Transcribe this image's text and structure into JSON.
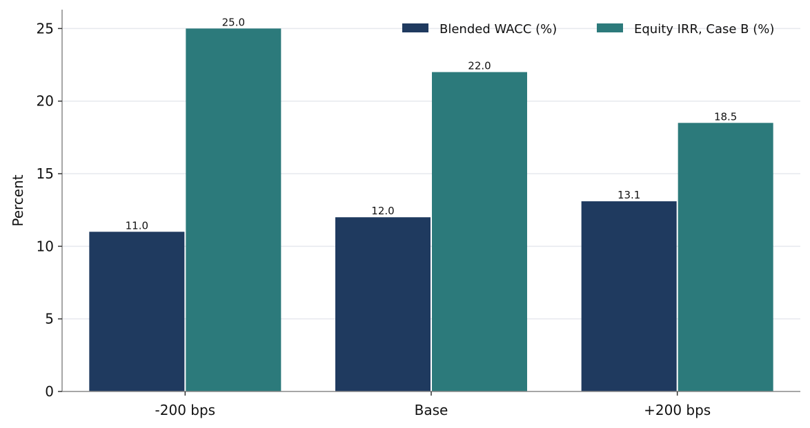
{
  "chart_data": {
    "type": "bar",
    "categories": [
      "-200 bps",
      "Base",
      "+200 bps"
    ],
    "series": [
      {
        "name": "Blended WACC (%)",
        "values": [
          11.0,
          12.0,
          13.1
        ],
        "color": "#1f3a5f"
      },
      {
        "name": "Equity IRR, Case B (%)",
        "values": [
          25.0,
          22.0,
          18.5
        ],
        "color": "#2c7a7b"
      }
    ],
    "data_labels": [
      [
        "11.0",
        "12.0",
        "13.1"
      ],
      [
        "25.0",
        "22.0",
        "18.5"
      ]
    ],
    "xlabel": "",
    "ylabel": "Percent",
    "ylim": [
      0,
      26.3
    ],
    "yticks": [
      0,
      5,
      10,
      15,
      20,
      25
    ],
    "grid": "horizontal",
    "legend_position": "top-right",
    "colors": {
      "grid": "#e6e8ee",
      "axis": "#888888"
    }
  }
}
